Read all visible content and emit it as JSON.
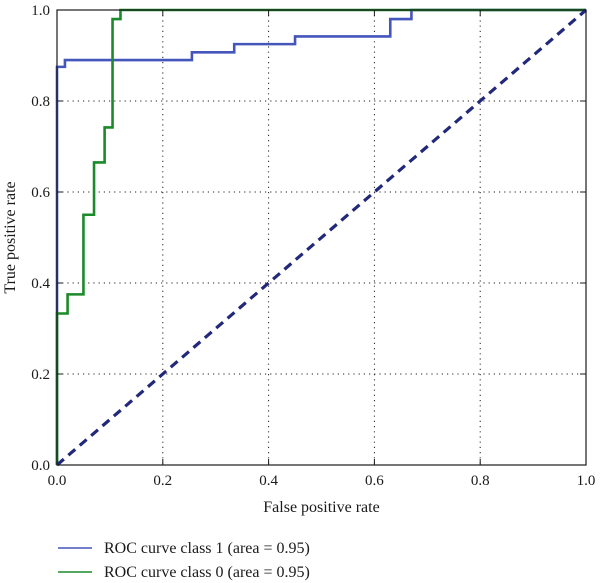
{
  "chart_data": {
    "type": "line",
    "xlabel": "False positive rate",
    "ylabel": "True positive rate",
    "xlim": [
      0.0,
      1.0
    ],
    "ylim": [
      0.0,
      1.0
    ],
    "x_ticks": [
      0.0,
      0.2,
      0.4,
      0.6,
      0.8,
      1.0
    ],
    "y_ticks": [
      0.0,
      0.2,
      0.4,
      0.6,
      0.8,
      1.0
    ],
    "x_tick_labels": [
      "0.0",
      "0.2",
      "0.4",
      "0.6",
      "0.8",
      "1.0"
    ],
    "y_tick_labels": [
      "0.0",
      "0.2",
      "0.4",
      "0.6",
      "0.8",
      "1.0"
    ],
    "grid": true,
    "legend_position": "below-left",
    "series": [
      {
        "name": "ROC curve class 1 (area = 0.95)",
        "color": "#4455bb",
        "style": "solid",
        "points": [
          [
            0.0,
            0.0
          ],
          [
            0.0,
            0.875
          ],
          [
            0.015,
            0.875
          ],
          [
            0.015,
            0.89
          ],
          [
            0.255,
            0.89
          ],
          [
            0.255,
            0.907
          ],
          [
            0.335,
            0.907
          ],
          [
            0.335,
            0.925
          ],
          [
            0.45,
            0.925
          ],
          [
            0.45,
            0.942
          ],
          [
            0.63,
            0.942
          ],
          [
            0.63,
            0.98
          ],
          [
            0.67,
            0.98
          ],
          [
            0.67,
            1.0
          ],
          [
            1.0,
            1.0
          ]
        ]
      },
      {
        "name": "ROC curve class 0 (area = 0.95)",
        "color": "#1a8a2a",
        "style": "solid",
        "points": [
          [
            0.0,
            0.0
          ],
          [
            0.0,
            0.333
          ],
          [
            0.02,
            0.333
          ],
          [
            0.02,
            0.375
          ],
          [
            0.05,
            0.375
          ],
          [
            0.05,
            0.55
          ],
          [
            0.07,
            0.55
          ],
          [
            0.07,
            0.665
          ],
          [
            0.09,
            0.665
          ],
          [
            0.09,
            0.742
          ],
          [
            0.105,
            0.742
          ],
          [
            0.105,
            0.98
          ],
          [
            0.12,
            0.98
          ],
          [
            0.12,
            1.0
          ],
          [
            1.0,
            1.0
          ]
        ]
      },
      {
        "color": "#22287a",
        "style": "dashed",
        "points": [
          [
            0.0,
            0.0
          ],
          [
            1.0,
            1.0
          ]
        ]
      }
    ]
  }
}
